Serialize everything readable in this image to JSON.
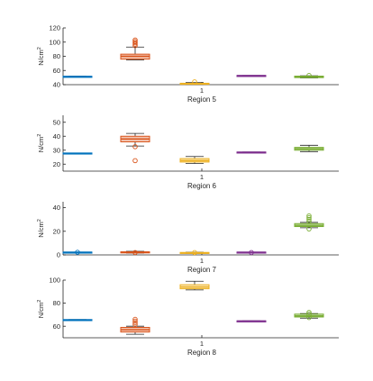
{
  "chart_data": [
    {
      "type": "box",
      "xlabel": "Region 5",
      "ylabel": "N/cm",
      "ylabel_sup": "2",
      "xtick": "1",
      "ylim": [
        40,
        120
      ],
      "yticks": [
        40,
        60,
        80,
        100,
        120
      ],
      "boxes": [
        {
          "color": "#0072BD",
          "q1": 51.2,
          "median": 51.5,
          "q3": 51.8,
          "whisker_low": 51.2,
          "whisker_high": 51.8,
          "outliers": []
        },
        {
          "color": "#D95319",
          "q1": 76,
          "median": 80,
          "q3": 83,
          "whisker_low": 75,
          "whisker_high": 93,
          "outliers": [
            95,
            97,
            99,
            101,
            103
          ]
        },
        {
          "color": "#EDB120",
          "q1": 40.6,
          "median": 41.2,
          "q3": 42,
          "whisker_low": 40.3,
          "whisker_high": 43,
          "outliers": [
            44
          ]
        },
        {
          "color": "#7E2F8E",
          "q1": 52.4,
          "median": 52.7,
          "q3": 53,
          "whisker_low": 52.4,
          "whisker_high": 53,
          "outliers": []
        },
        {
          "color": "#77AC30",
          "q1": 50,
          "median": 51,
          "q3": 52,
          "whisker_low": 49.5,
          "whisker_high": 52.5,
          "outliers": [
            53
          ]
        }
      ]
    },
    {
      "type": "box",
      "xlabel": "Region 6",
      "ylabel": "N/cm",
      "ylabel_sup": "2",
      "xtick": "1",
      "ylim": [
        15,
        55
      ],
      "yticks": [
        20,
        30,
        40,
        50
      ],
      "boxes": [
        {
          "color": "#0072BD",
          "q1": 27.6,
          "median": 27.8,
          "q3": 28,
          "whisker_low": 27.6,
          "whisker_high": 28,
          "outliers": []
        },
        {
          "color": "#D95319",
          "q1": 36,
          "median": 38,
          "q3": 40,
          "whisker_low": 33,
          "whisker_high": 42,
          "outliers": [
            22.5,
            32.5
          ]
        },
        {
          "color": "#EDB120",
          "q1": 21.5,
          "median": 22.5,
          "q3": 24,
          "whisker_low": 20.5,
          "whisker_high": 25.5,
          "outliers": []
        },
        {
          "color": "#7E2F8E",
          "q1": 28.3,
          "median": 28.5,
          "q3": 28.7,
          "whisker_low": 28.3,
          "whisker_high": 28.7,
          "outliers": []
        },
        {
          "color": "#77AC30",
          "q1": 30,
          "median": 31,
          "q3": 32,
          "whisker_low": 29,
          "whisker_high": 33.5,
          "outliers": []
        }
      ]
    },
    {
      "type": "box",
      "xlabel": "Region 7",
      "ylabel": "N/cm",
      "ylabel_sup": "2",
      "xtick": "1",
      "ylim": [
        0,
        45
      ],
      "yticks": [
        0,
        20,
        40
      ],
      "boxes": [
        {
          "color": "#0072BD",
          "q1": 2,
          "median": 2.2,
          "q3": 2.4,
          "whisker_low": 2,
          "whisker_high": 2.4,
          "outliers": [
            2.2
          ]
        },
        {
          "color": "#D95319",
          "q1": 1.8,
          "median": 2.2,
          "q3": 2.6,
          "whisker_low": 1.5,
          "whisker_high": 3,
          "outliers": [
            2
          ]
        },
        {
          "color": "#EDB120",
          "q1": 1.5,
          "median": 1.8,
          "q3": 2.1,
          "whisker_low": 1.3,
          "whisker_high": 2.3,
          "outliers": [
            2
          ]
        },
        {
          "color": "#7E2F8E",
          "q1": 2,
          "median": 2.2,
          "q3": 2.4,
          "whisker_low": 2,
          "whisker_high": 2.4,
          "outliers": [
            2
          ]
        },
        {
          "color": "#77AC30",
          "q1": 24,
          "median": 25,
          "q3": 26.5,
          "whisker_low": 23,
          "whisker_high": 27.5,
          "outliers": [
            22,
            28.5,
            30,
            31.5,
            33
          ]
        }
      ]
    },
    {
      "type": "box",
      "xlabel": "Region 8",
      "ylabel": "N/cm",
      "ylabel_sup": "2",
      "xtick": "1",
      "ylim": [
        50,
        100
      ],
      "yticks": [
        60,
        80,
        100
      ],
      "boxes": [
        {
          "color": "#0072BD",
          "q1": 65.2,
          "median": 65.5,
          "q3": 65.8,
          "whisker_low": 65.2,
          "whisker_high": 65.8,
          "outliers": []
        },
        {
          "color": "#D95319",
          "q1": 55,
          "median": 57,
          "q3": 59,
          "whisker_low": 53,
          "whisker_high": 60,
          "outliers": [
            61.5,
            63,
            64.5,
            66
          ]
        },
        {
          "color": "#EDB120",
          "q1": 92.5,
          "median": 94,
          "q3": 96,
          "whisker_low": 91.5,
          "whisker_high": 99,
          "outliers": []
        },
        {
          "color": "#7E2F8E",
          "q1": 64.3,
          "median": 64.5,
          "q3": 64.7,
          "whisker_low": 64.3,
          "whisker_high": 64.7,
          "outliers": []
        },
        {
          "color": "#77AC30",
          "q1": 68,
          "median": 69,
          "q3": 70.5,
          "whisker_low": 67,
          "whisker_high": 71,
          "outliers": [
            67.5,
            70.5,
            72
          ]
        }
      ]
    }
  ]
}
